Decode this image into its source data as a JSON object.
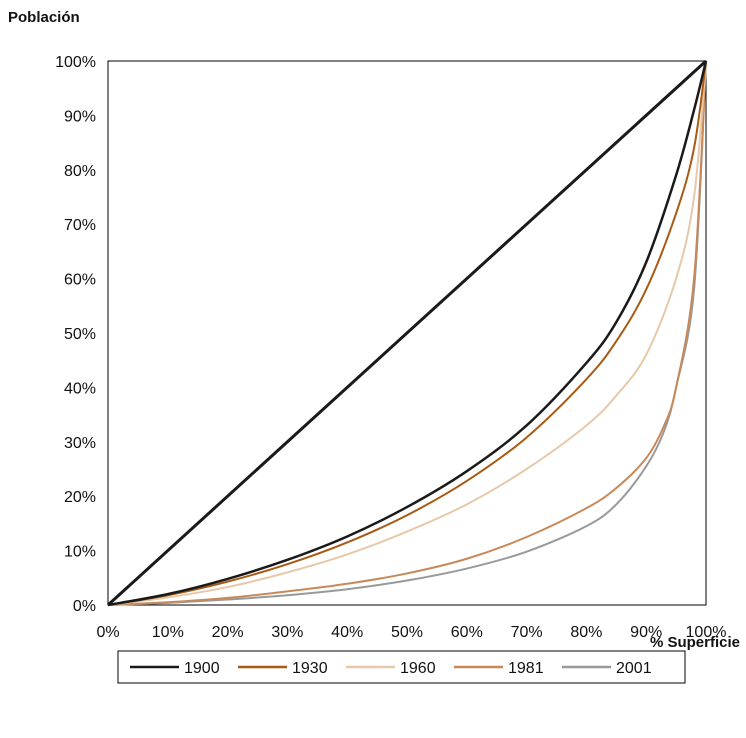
{
  "chart_data": {
    "type": "line",
    "ylabel": "Población",
    "xlabel": "% Superficie",
    "xlim": [
      0,
      100
    ],
    "ylim": [
      0,
      100
    ],
    "x_ticks": [
      "0%",
      "10%",
      "20%",
      "30%",
      "40%",
      "50%",
      "60%",
      "70%",
      "80%",
      "90%",
      "100%"
    ],
    "y_ticks": [
      "0%",
      "10%",
      "20%",
      "30%",
      "40%",
      "50%",
      "60%",
      "70%",
      "80%",
      "90%",
      "100%"
    ],
    "grid": false,
    "legend_position": "bottom",
    "series": [
      {
        "name": "1900",
        "color": "#1a1a1a",
        "x": [
          0,
          10,
          20,
          30,
          40,
          50,
          60,
          70,
          80,
          85,
          90,
          95,
          98,
          100
        ],
        "y": [
          0,
          2,
          4.8,
          8.3,
          12.6,
          18,
          24.6,
          33,
          44.5,
          52,
          63,
          79,
          91,
          100
        ]
      },
      {
        "name": "1930",
        "color": "#a85a14",
        "x": [
          0,
          10,
          20,
          30,
          40,
          50,
          60,
          70,
          80,
          85,
          90,
          95,
          98,
          100
        ],
        "y": [
          0,
          1.8,
          4.3,
          7.5,
          11.5,
          16.5,
          22.8,
          30.8,
          41.5,
          48.5,
          58,
          72,
          84,
          100
        ]
      },
      {
        "name": "1960",
        "color": "#e8c8a8",
        "x": [
          0,
          10,
          20,
          30,
          40,
          50,
          60,
          70,
          80,
          85,
          90,
          95,
          98,
          100
        ],
        "y": [
          0,
          1.4,
          3.3,
          6,
          9.3,
          13.5,
          18.5,
          25,
          33,
          38.5,
          46,
          60,
          75,
          100
        ]
      },
      {
        "name": "1981",
        "color": "#c8895a",
        "x": [
          0,
          10,
          20,
          30,
          40,
          50,
          60,
          70,
          80,
          85,
          90,
          93,
          95,
          98,
          100
        ],
        "y": [
          0,
          0.5,
          1.3,
          2.5,
          3.9,
          5.8,
          8.5,
          12.5,
          17.8,
          21.5,
          27,
          33,
          40,
          60,
          100
        ]
      },
      {
        "name": "2001",
        "color": "#999999",
        "x": [
          0,
          10,
          20,
          30,
          40,
          50,
          60,
          70,
          80,
          85,
          90,
          93,
          95,
          98,
          100
        ],
        "y": [
          0,
          0.4,
          1,
          1.8,
          2.9,
          4.5,
          6.7,
          9.8,
          14.5,
          18.5,
          25.5,
          32,
          40,
          58,
          100
        ]
      }
    ]
  }
}
